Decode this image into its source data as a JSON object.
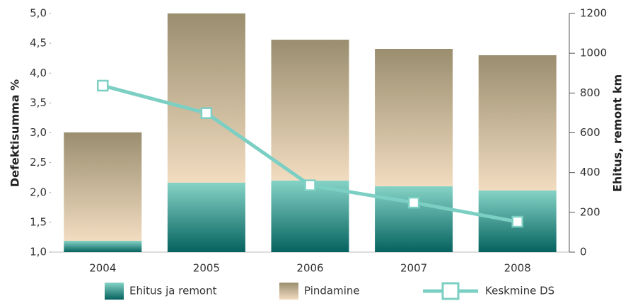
{
  "chart_data": {
    "type": "bar_line",
    "y_label": "Defektisumma %",
    "y2_label": "Ehitus, remont km",
    "categories": [
      "2004",
      "2005",
      "2006",
      "2007",
      "2008"
    ],
    "ylim": [
      1.0,
      5.0
    ],
    "yticks": [
      {
        "value": 1.0,
        "label": "1,0"
      },
      {
        "value": 1.5,
        "label": "1,5"
      },
      {
        "value": 2.0,
        "label": "2,0"
      },
      {
        "value": 2.5,
        "label": "2,5"
      },
      {
        "value": 3.0,
        "label": "3,0"
      },
      {
        "value": 3.5,
        "label": "3,5"
      },
      {
        "value": 4.0,
        "label": "4,0"
      },
      {
        "value": 4.5,
        "label": "4,5"
      },
      {
        "value": 5.0,
        "label": "5,0"
      }
    ],
    "y2lim": [
      0,
      1200
    ],
    "y2ticks": [
      0,
      200,
      400,
      600,
      800,
      1000,
      1200
    ],
    "series": [
      {
        "name": "Ehitus ja remont",
        "type": "bar",
        "axis": "y2",
        "color": "#2a8f88",
        "values": [
          57,
          349,
          360,
          331,
          310
        ]
      },
      {
        "name": "Pindamine",
        "type": "bar",
        "axis": "y2",
        "color": "#c4b596",
        "values": [
          545,
          851,
          708,
          691,
          680
        ]
      },
      {
        "name": "Keskmine DS",
        "type": "line",
        "axis": "y",
        "color": "#7ccfc3",
        "values": [
          3.79,
          3.33,
          2.12,
          1.83,
          1.51
        ]
      }
    ]
  }
}
